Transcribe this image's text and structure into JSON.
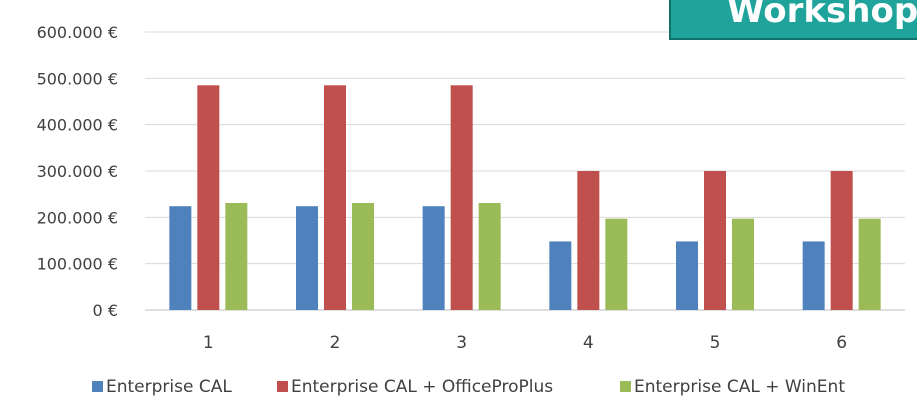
{
  "badge": {
    "text": "Workshop"
  },
  "chart_data": {
    "type": "bar",
    "categories": [
      "1",
      "2",
      "3",
      "4",
      "5",
      "6"
    ],
    "series": [
      {
        "name": "Enterprise CAL",
        "color": "#4f81bd",
        "values": [
          224000,
          224000,
          224000,
          148000,
          148000,
          148000
        ]
      },
      {
        "name": "Enterprise CAL + OfficeProPlus",
        "color": "#c0504d",
        "values": [
          485000,
          485000,
          485000,
          300000,
          300000,
          300000
        ]
      },
      {
        "name": "Enterprise CAL + WinEnt",
        "color": "#9bbb59",
        "values": [
          231000,
          231000,
          231000,
          197000,
          197000,
          197000
        ]
      }
    ],
    "yticks": [
      "0 €",
      "100.000 €",
      "200.000 €",
      "300.000 €",
      "400.000 €",
      "500.000 €",
      "600.000 €"
    ],
    "ylim": [
      0,
      600000
    ],
    "grid": true,
    "legend": "bottom",
    "xlabel": "",
    "ylabel": "",
    "title": ""
  }
}
